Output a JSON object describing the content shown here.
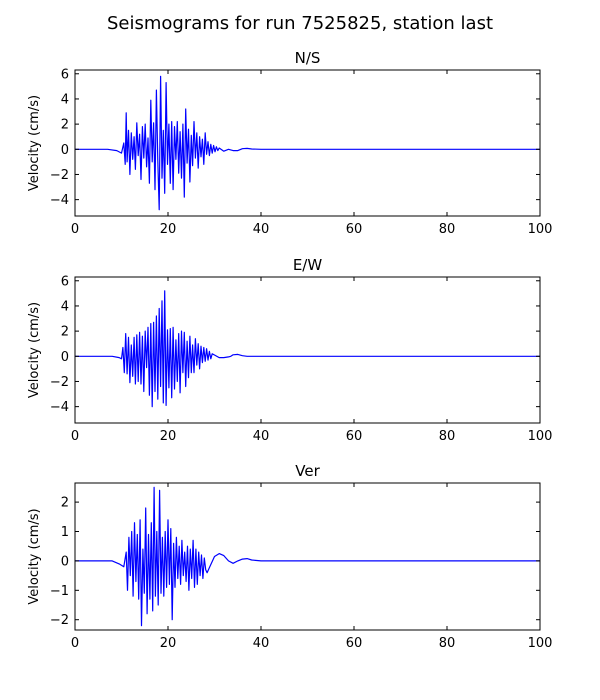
{
  "figure": {
    "title": "Seismograms for run 7525825, station last",
    "line_color": "#0000ff"
  },
  "chart_data": [
    {
      "type": "line",
      "title": "N/S",
      "xlabel": "",
      "ylabel": "Velocity (cm/s)",
      "xlim": [
        0,
        100
      ],
      "ylim": [
        -5.3,
        6.3
      ],
      "xticks": [
        0,
        20,
        40,
        60,
        80,
        100
      ],
      "yticks": [
        -4,
        -2,
        0,
        2,
        4,
        6
      ],
      "grid": false,
      "series": [
        {
          "x": [
            0,
            7,
            9,
            10,
            10.5,
            10.8,
            11,
            11.2,
            11.5,
            11.8,
            12.1,
            12.4,
            12.7,
            13,
            13.3,
            13.6,
            13.9,
            14.2,
            14.5,
            14.8,
            15.1,
            15.4,
            15.7,
            16,
            16.3,
            16.6,
            16.9,
            17.2,
            17.5,
            17.8,
            18.1,
            18.4,
            18.7,
            19,
            19.3,
            19.6,
            19.9,
            20.2,
            20.5,
            20.8,
            21.1,
            21.4,
            21.7,
            22,
            22.3,
            22.6,
            22.9,
            23.2,
            23.5,
            23.8,
            24.1,
            24.4,
            24.7,
            25,
            25.3,
            25.6,
            25.9,
            26.2,
            26.5,
            26.8,
            27.1,
            27.4,
            27.7,
            28,
            28.3,
            28.6,
            28.9,
            29.2,
            29.5,
            29.8,
            30.1,
            30.4,
            30.7,
            31,
            32,
            33,
            34,
            35,
            36,
            37,
            38,
            40,
            50,
            60,
            80,
            100
          ],
          "y": [
            0,
            0,
            -0.1,
            -0.3,
            0.5,
            -1.2,
            2.9,
            -1.0,
            1.5,
            -2.0,
            1.3,
            -0.8,
            1.0,
            -1.6,
            2.1,
            -0.5,
            1.2,
            -2.4,
            1.8,
            -0.7,
            2.0,
            -1.4,
            0.9,
            -2.7,
            3.9,
            -1.0,
            2.1,
            -3.2,
            4.7,
            -0.9,
            -4.8,
            5.8,
            -2.3,
            1.5,
            -3.5,
            5.3,
            -1.2,
            2.0,
            -2.7,
            2.2,
            -3.2,
            1.8,
            -0.8,
            2.2,
            -1.9,
            1.4,
            -2.3,
            2.0,
            -3.8,
            3.2,
            -1.1,
            1.6,
            -2.6,
            1.1,
            -1.3,
            2.2,
            -0.7,
            1.3,
            -1.5,
            1.0,
            -0.6,
            0.8,
            -1.2,
            1.3,
            -0.4,
            0.6,
            -0.5,
            0.4,
            -0.3,
            0.3,
            -0.2,
            0.2,
            -0.1,
            0.1,
            -0.15,
            0,
            -0.1,
            -0.1,
            0.05,
            0.07,
            0.02,
            0,
            0,
            0,
            0,
            0
          ]
        }
      ]
    },
    {
      "type": "line",
      "title": "E/W",
      "xlabel": "",
      "ylabel": "Velocity (cm/s)",
      "xlim": [
        0,
        100
      ],
      "ylim": [
        -5.3,
        6.3
      ],
      "xticks": [
        0,
        20,
        40,
        60,
        80,
        100
      ],
      "yticks": [
        -4,
        -2,
        0,
        2,
        4,
        6
      ],
      "grid": false,
      "series": [
        {
          "x": [
            0,
            8,
            9.5,
            10,
            10.3,
            10.6,
            10.9,
            11.2,
            11.5,
            11.8,
            12.1,
            12.4,
            12.7,
            13,
            13.3,
            13.6,
            13.9,
            14.2,
            14.5,
            14.8,
            15.1,
            15.4,
            15.7,
            16,
            16.3,
            16.6,
            16.9,
            17.2,
            17.5,
            17.8,
            18.1,
            18.4,
            18.7,
            19,
            19.3,
            19.6,
            19.9,
            20.2,
            20.5,
            20.8,
            21.1,
            21.4,
            21.7,
            22,
            22.3,
            22.6,
            22.9,
            23.2,
            23.5,
            23.8,
            24.1,
            24.4,
            24.7,
            25,
            25.3,
            25.6,
            25.9,
            26.2,
            26.5,
            26.8,
            27.1,
            27.4,
            27.7,
            28,
            28.3,
            28.6,
            28.9,
            29.2,
            29.5,
            30,
            31,
            32,
            33,
            33.5,
            34,
            35,
            36,
            37,
            38,
            40,
            60,
            80,
            100
          ],
          "y": [
            0,
            0,
            -0.1,
            -0.2,
            0.7,
            -1.3,
            1.8,
            -1.4,
            1.5,
            -2.1,
            0.9,
            -1.6,
            1.5,
            -2.2,
            1.7,
            -2.0,
            1.9,
            -2.2,
            1.6,
            -2.8,
            2.0,
            -0.9,
            2.3,
            -3.1,
            2.6,
            -4.0,
            2.7,
            -2.8,
            3.2,
            -3.4,
            3.8,
            -2.4,
            4.4,
            -3.7,
            5.2,
            -3.9,
            2.1,
            -2.5,
            2.2,
            -3.3,
            2.3,
            -2.6,
            1.3,
            -2.0,
            1.8,
            -2.9,
            2.0,
            -1.3,
            1.9,
            -2.4,
            1.2,
            -1.7,
            1.6,
            -1.3,
            0.9,
            -1.3,
            1.4,
            -0.7,
            1.0,
            -1.0,
            0.8,
            -0.5,
            0.7,
            -0.4,
            0.6,
            -0.3,
            0.4,
            -0.2,
            0.2,
            0.1,
            -0.1,
            -0.1,
            -0.05,
            0,
            0.12,
            0.15,
            0.05,
            0,
            0,
            0,
            0,
            0,
            0
          ]
        }
      ]
    },
    {
      "type": "line",
      "title": "Ver",
      "xlabel": "",
      "ylabel": "Velocity (cm/s)",
      "xlim": [
        0,
        100
      ],
      "ylim": [
        -2.35,
        2.65
      ],
      "xticks": [
        0,
        20,
        40,
        60,
        80,
        100
      ],
      "yticks": [
        -2,
        -1,
        0,
        1,
        2
      ],
      "grid": false,
      "series": [
        {
          "x": [
            0,
            8,
            9.5,
            10.5,
            11,
            11.3,
            11.6,
            11.9,
            12.2,
            12.5,
            12.8,
            13.1,
            13.4,
            13.7,
            14,
            14.3,
            14.6,
            14.9,
            15.2,
            15.5,
            15.8,
            16.1,
            16.4,
            16.7,
            17,
            17.3,
            17.6,
            17.9,
            18.2,
            18.5,
            18.8,
            19.1,
            19.4,
            19.7,
            20,
            20.3,
            20.6,
            20.9,
            21.2,
            21.5,
            21.8,
            22.1,
            22.4,
            22.7,
            23,
            23.3,
            23.6,
            23.9,
            24.2,
            24.5,
            24.8,
            25.1,
            25.4,
            25.7,
            26,
            26.3,
            26.6,
            26.9,
            27.2,
            27.5,
            27.8,
            28.1,
            28.4,
            29,
            30,
            31,
            32,
            33,
            34,
            35,
            36,
            37,
            38,
            40,
            60,
            80,
            100
          ],
          "y": [
            0,
            0,
            -0.1,
            -0.2,
            0.3,
            -1.0,
            0.8,
            -0.5,
            1.0,
            -1.2,
            1.3,
            -0.7,
            0.9,
            -1.3,
            1.4,
            -2.2,
            0.4,
            -1.1,
            1.8,
            -1.8,
            0.9,
            -1.3,
            1.3,
            -1.7,
            2.5,
            -1.2,
            1.0,
            -1.5,
            2.4,
            -1.1,
            0.8,
            -1.2,
            1.0,
            -0.9,
            1.4,
            -0.8,
            1.1,
            -2.0,
            0.6,
            -0.9,
            0.8,
            -0.6,
            0.5,
            -0.8,
            0.7,
            -0.5,
            0.3,
            -0.7,
            0.5,
            -1.0,
            0.4,
            -0.6,
            0.7,
            -0.9,
            0.4,
            -0.8,
            0.3,
            -0.5,
            0.2,
            -0.6,
            0.1,
            -0.3,
            -0.4,
            -0.2,
            0.15,
            0.25,
            0.18,
            0.0,
            -0.08,
            0.0,
            0.06,
            0.08,
            0.03,
            0,
            0,
            0,
            0
          ]
        }
      ]
    }
  ]
}
